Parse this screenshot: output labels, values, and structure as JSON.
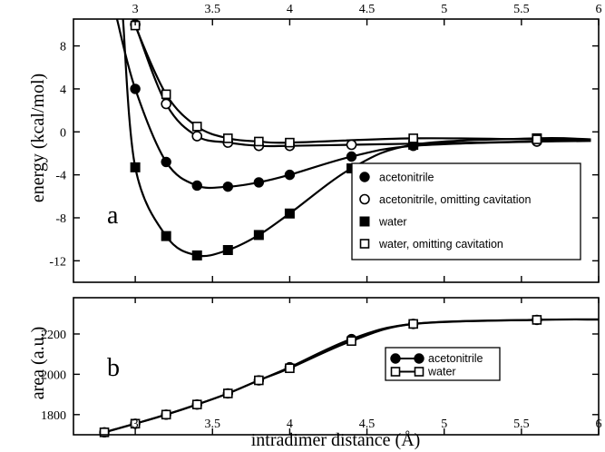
{
  "chart_data": [
    {
      "type": "line",
      "panel_label": "a",
      "ylabel": "energy (kcal/mol)",
      "xlim": [
        2.6,
        6.0
      ],
      "ylim": [
        -14,
        10.5
      ],
      "x_ticks": [
        "3",
        "3.5",
        "4",
        "4.5",
        "5",
        "5.5",
        "6"
      ],
      "x_ticks_position": "top",
      "y_ticks": [
        "8",
        "4",
        "0",
        "-4",
        "-8",
        "-12"
      ],
      "legend_position": "right-center",
      "series": [
        {
          "name": "acetonitrile",
          "marker": "filled-circle",
          "x": [
            3.0,
            3.2,
            3.4,
            3.6,
            3.8,
            4.0,
            4.4,
            4.8,
            5.6
          ],
          "y": [
            4.0,
            -2.8,
            -5.0,
            -5.1,
            -4.7,
            -4.0,
            -2.3,
            -1.3,
            -0.9
          ]
        },
        {
          "name": "acetonitrile, omitting cavitation",
          "marker": "open-circle",
          "x": [
            3.0,
            3.2,
            3.4,
            3.6,
            3.8,
            4.0,
            4.4,
            4.8,
            5.6
          ],
          "y": [
            10.0,
            2.6,
            -0.4,
            -1.0,
            -1.3,
            -1.3,
            -1.2,
            -1.1,
            -0.9
          ]
        },
        {
          "name": "water",
          "marker": "filled-square",
          "x": [
            3.0,
            3.2,
            3.4,
            3.6,
            3.8,
            4.0,
            4.4,
            4.8,
            5.6
          ],
          "y": [
            -3.3,
            -9.7,
            -11.5,
            -11.0,
            -9.6,
            -7.6,
            -3.4,
            -1.2,
            -0.6
          ]
        },
        {
          "name": "water, omitting cavitation",
          "marker": "open-square",
          "x": [
            3.0,
            3.2,
            3.4,
            3.6,
            3.8,
            4.0,
            4.8,
            5.6
          ],
          "y": [
            9.9,
            3.5,
            0.5,
            -0.6,
            -0.9,
            -1.0,
            -0.6,
            -0.7
          ]
        }
      ]
    },
    {
      "type": "line",
      "panel_label": "b",
      "xlabel": "intradimer distance (Å)",
      "ylabel": "area (a.u.)",
      "xlim": [
        2.6,
        6.0
      ],
      "ylim": [
        1700,
        2380
      ],
      "x_ticks": [
        "3",
        "3.5",
        "4",
        "4.5",
        "5",
        "5.5",
        "6"
      ],
      "y_ticks": [
        "2200",
        "2000",
        "1800"
      ],
      "legend_position": "lower-right",
      "series": [
        {
          "name": "acetonitrile",
          "marker": "filled-circle",
          "x": [
            2.8,
            3.0,
            3.2,
            3.4,
            3.6,
            3.8,
            4.0,
            4.4,
            4.8,
            5.6
          ],
          "y": [
            1712,
            1755,
            1800,
            1850,
            1905,
            1970,
            2035,
            2175,
            2250,
            2270
          ]
        },
        {
          "name": "water",
          "marker": "open-square",
          "x": [
            2.8,
            3.0,
            3.2,
            3.4,
            3.6,
            3.8,
            4.0,
            4.4,
            4.8,
            5.6
          ],
          "y": [
            1712,
            1755,
            1800,
            1850,
            1905,
            1970,
            2030,
            2165,
            2250,
            2270
          ]
        }
      ]
    }
  ]
}
